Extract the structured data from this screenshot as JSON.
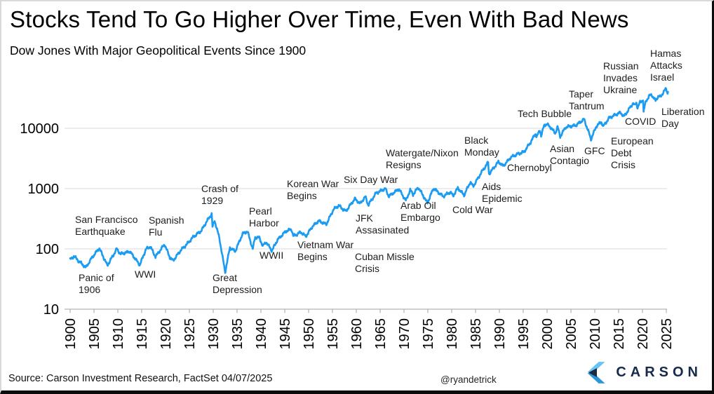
{
  "title": "Stocks Tend To Go Higher Over Time, Even With Bad News",
  "subtitle": "Dow Jones With Major Geopolitical Events Since 1900",
  "footer": {
    "source": "Source: Carson Investment Research, FactSet 04/07/2025",
    "handle": "@ryandetrick",
    "brand": "CARSON"
  },
  "colors": {
    "line": "#1B9CF2",
    "grid": "#D9D9D9",
    "axis": "#B3B3B3",
    "annotation": "#1D1D1D",
    "brand_navy": "#1B2B45",
    "brand_blue": "#2B96D9",
    "brand_lightblue": "#66C4F2"
  },
  "chart_data": {
    "type": "line",
    "title": "Stocks Tend To Go Higher Over Time, Even With Bad News",
    "subtitle": "Dow Jones With Major Geopolitical Events Since 1900",
    "xlabel": "",
    "ylabel": "",
    "y_scale": "log",
    "grid": "horizontal",
    "legend": "none",
    "x_range": [
      1900,
      2025
    ],
    "y_range": [
      10,
      100000
    ],
    "x_ticks": [
      1900,
      1905,
      1910,
      1915,
      1920,
      1925,
      1930,
      1935,
      1940,
      1945,
      1950,
      1955,
      1960,
      1965,
      1970,
      1975,
      1980,
      1985,
      1990,
      1995,
      2000,
      2005,
      2010,
      2015,
      2020,
      2025
    ],
    "y_ticks": [
      10,
      100,
      1000,
      10000
    ],
    "series": [
      {
        "name": "Dow Jones Industrial Average",
        "color": "#1B9CF2",
        "points": [
          [
            1900,
            66
          ],
          [
            1900.8,
            76
          ],
          [
            1901.6,
            65
          ],
          [
            1903.3,
            49
          ],
          [
            1904.5,
            70
          ],
          [
            1906.1,
            103
          ],
          [
            1907.8,
            53
          ],
          [
            1909.8,
            100
          ],
          [
            1910.6,
            82
          ],
          [
            1912.5,
            91
          ],
          [
            1914.6,
            54
          ],
          [
            1915.9,
            99
          ],
          [
            1916.8,
            110
          ],
          [
            1917.9,
            74
          ],
          [
            1919.8,
            119
          ],
          [
            1920.9,
            72
          ],
          [
            1921.6,
            64
          ],
          [
            1923.2,
            95
          ],
          [
            1924.5,
            120
          ],
          [
            1925.8,
            157
          ],
          [
            1927.5,
            200
          ],
          [
            1928.8,
            300
          ],
          [
            1929.68,
            381
          ],
          [
            1929.85,
            230
          ],
          [
            1930.3,
            294
          ],
          [
            1931.3,
            150
          ],
          [
            1932.5,
            41
          ],
          [
            1933.5,
            105
          ],
          [
            1934.6,
            91
          ],
          [
            1936.2,
            180
          ],
          [
            1937.2,
            194
          ],
          [
            1938.3,
            99
          ],
          [
            1938.8,
            158
          ],
          [
            1939.7,
            152
          ],
          [
            1940.4,
            111
          ],
          [
            1941.1,
            130
          ],
          [
            1942.3,
            93
          ],
          [
            1943.5,
            142
          ],
          [
            1945.2,
            195
          ],
          [
            1946.4,
            212
          ],
          [
            1946.8,
            163
          ],
          [
            1948.4,
            190
          ],
          [
            1949.4,
            161
          ],
          [
            1950.8,
            235
          ],
          [
            1952.1,
            292
          ],
          [
            1953.7,
            255
          ],
          [
            1955.2,
            450
          ],
          [
            1956.3,
            521
          ],
          [
            1957.8,
            420
          ],
          [
            1959.7,
            679
          ],
          [
            1960.8,
            566
          ],
          [
            1961.9,
            734
          ],
          [
            1962.5,
            535
          ],
          [
            1964.2,
            850
          ],
          [
            1966.1,
            995
          ],
          [
            1966.8,
            744
          ],
          [
            1968.9,
            985
          ],
          [
            1970.4,
            631
          ],
          [
            1971.3,
            950
          ],
          [
            1971.9,
            798
          ],
          [
            1973.0,
            1051
          ],
          [
            1974.9,
            577
          ],
          [
            1976.2,
            1014
          ],
          [
            1978.2,
            742
          ],
          [
            1979.7,
            878
          ],
          [
            1980.3,
            759
          ],
          [
            1981.3,
            1024
          ],
          [
            1982.6,
            777
          ],
          [
            1983.9,
            1287
          ],
          [
            1984.5,
            1086
          ],
          [
            1986.3,
            1895
          ],
          [
            1987.65,
            2722
          ],
          [
            1987.82,
            1738
          ],
          [
            1989.8,
            2791
          ],
          [
            1990.8,
            2365
          ],
          [
            1992.4,
            3300
          ],
          [
            1994.1,
            3834
          ],
          [
            1995.1,
            4000
          ],
          [
            1996.4,
            5600
          ],
          [
            1997.6,
            8259
          ],
          [
            1997.8,
            7161
          ],
          [
            1998.5,
            9337
          ],
          [
            1998.75,
            7539
          ],
          [
            1999.4,
            11200
          ],
          [
            2000.0,
            11722
          ],
          [
            2001.0,
            9800
          ],
          [
            2001.7,
            8236
          ],
          [
            2002.2,
            10600
          ],
          [
            2002.75,
            7286
          ],
          [
            2003.9,
            10450
          ],
          [
            2006.0,
            11150
          ],
          [
            2007.75,
            14164
          ],
          [
            2008.85,
            8046
          ],
          [
            2009.2,
            6547
          ],
          [
            2010.3,
            10700
          ],
          [
            2011.4,
            12810
          ],
          [
            2011.75,
            10655
          ],
          [
            2013.0,
            14800
          ],
          [
            2014.5,
            17000
          ],
          [
            2015.4,
            18312
          ],
          [
            2016.1,
            15660
          ],
          [
            2017.2,
            20900
          ],
          [
            2018.1,
            26616
          ],
          [
            2018.3,
            23500
          ],
          [
            2018.75,
            26828
          ],
          [
            2018.97,
            21792
          ],
          [
            2019.5,
            27000
          ],
          [
            2020.12,
            29551
          ],
          [
            2020.23,
            18591
          ],
          [
            2020.7,
            28000
          ],
          [
            2021.4,
            34000
          ],
          [
            2021.9,
            36338
          ],
          [
            2022.4,
            31500
          ],
          [
            2022.75,
            28725
          ],
          [
            2023.3,
            34000
          ],
          [
            2023.8,
            33000
          ],
          [
            2024.4,
            40000
          ],
          [
            2024.92,
            45014
          ],
          [
            2025.1,
            42000
          ],
          [
            2025.27,
            37965
          ],
          [
            2025.35,
            40300
          ]
        ]
      }
    ],
    "annotations": [
      {
        "id": "san-francisco-earthquake",
        "lines": [
          "San Francisco",
          "Earthquake"
        ],
        "x": 1901.0,
        "y": 346
      },
      {
        "id": "panic-of-1906",
        "lines": [
          "Panic of",
          "1906"
        ],
        "x": 1901.8,
        "y": 37
      },
      {
        "id": "wwi",
        "lines": [
          "WWI"
        ],
        "x": 1913.5,
        "y": 42
      },
      {
        "id": "spanish-flu",
        "lines": [
          "Spanish",
          "Flu"
        ],
        "x": 1916.5,
        "y": 333
      },
      {
        "id": "crash-of-1929",
        "lines": [
          "Crash of",
          "1929"
        ],
        "x": 1927.5,
        "y": 1100
      },
      {
        "id": "great-depression",
        "lines": [
          "Great",
          "Depression"
        ],
        "x": 1929.9,
        "y": 37
      },
      {
        "id": "pearl-harbor",
        "lines": [
          "Pearl",
          "Harbor"
        ],
        "x": 1937.5,
        "y": 472
      },
      {
        "id": "wwii",
        "lines": [
          "WWII"
        ],
        "x": 1939.7,
        "y": 87
      },
      {
        "id": "korean-war-begins",
        "lines": [
          "Korean War",
          "Begins"
        ],
        "x": 1945.4,
        "y": 1340
      },
      {
        "id": "vietnam-war-begins",
        "lines": [
          "Vietnam War",
          "Begins"
        ],
        "x": 1947.6,
        "y": 131
      },
      {
        "id": "six-day-war",
        "lines": [
          "Six Day War"
        ],
        "x": 1957.4,
        "y": 1580
      },
      {
        "id": "jfk-assasinated",
        "lines": [
          "JFK",
          "Assasinated"
        ],
        "x": 1959.9,
        "y": 361
      },
      {
        "id": "cuban-missle-crisis",
        "lines": [
          "Cuban Missle",
          "Crisis"
        ],
        "x": 1959.7,
        "y": 83
      },
      {
        "id": "watergate-nixon-resigns",
        "lines": [
          "Watergate/Nixon",
          "Resigns"
        ],
        "x": 1966.2,
        "y": 4400
      },
      {
        "id": "arab-oil-embargo",
        "lines": [
          "Arab Oil",
          "Embargo"
        ],
        "x": 1969.3,
        "y": 585
      },
      {
        "id": "cold-war",
        "lines": [
          "Cold War"
        ],
        "x": 1980.1,
        "y": 500
      },
      {
        "id": "black-monday",
        "lines": [
          "Black",
          "Monday"
        ],
        "x": 1982.6,
        "y": 7000
      },
      {
        "id": "aids-epidemic",
        "lines": [
          "Aids",
          "Epidemic"
        ],
        "x": 1986.3,
        "y": 1200
      },
      {
        "id": "chernobyl",
        "lines": [
          "Chernobyl"
        ],
        "x": 1991.6,
        "y": 2480
      },
      {
        "id": "tech-bubble",
        "lines": [
          "Tech Bubble"
        ],
        "x": 1993.8,
        "y": 19500
      },
      {
        "id": "asian-contagio",
        "lines": [
          "Asian",
          "Contagio"
        ],
        "x": 2000.6,
        "y": 5100
      },
      {
        "id": "taper-tantrum",
        "lines": [
          "Taper",
          "Tantrum"
        ],
        "x": 2004.6,
        "y": 41300
      },
      {
        "id": "gfc",
        "lines": [
          "GFC"
        ],
        "x": 2007.8,
        "y": 4700
      },
      {
        "id": "russian-invades-ukraine",
        "lines": [
          "Russian",
          "Invades",
          "Ukraine"
        ],
        "x": 2011.8,
        "y": 120000
      },
      {
        "id": "european-debt-crisis",
        "lines": [
          "European",
          "Debt",
          "Crisis"
        ],
        "x": 2013.4,
        "y": 6900
      },
      {
        "id": "covid",
        "lines": [
          "COVID"
        ],
        "x": 2016.3,
        "y": 14500
      },
      {
        "id": "hamas-attacks-israel",
        "lines": [
          "Hamas",
          "Attacks",
          "Israel"
        ],
        "x": 2021.6,
        "y": 195000
      },
      {
        "id": "liberation-day",
        "lines": [
          "Liberation",
          "Day"
        ],
        "x": 2024.0,
        "y": 21100
      }
    ]
  }
}
